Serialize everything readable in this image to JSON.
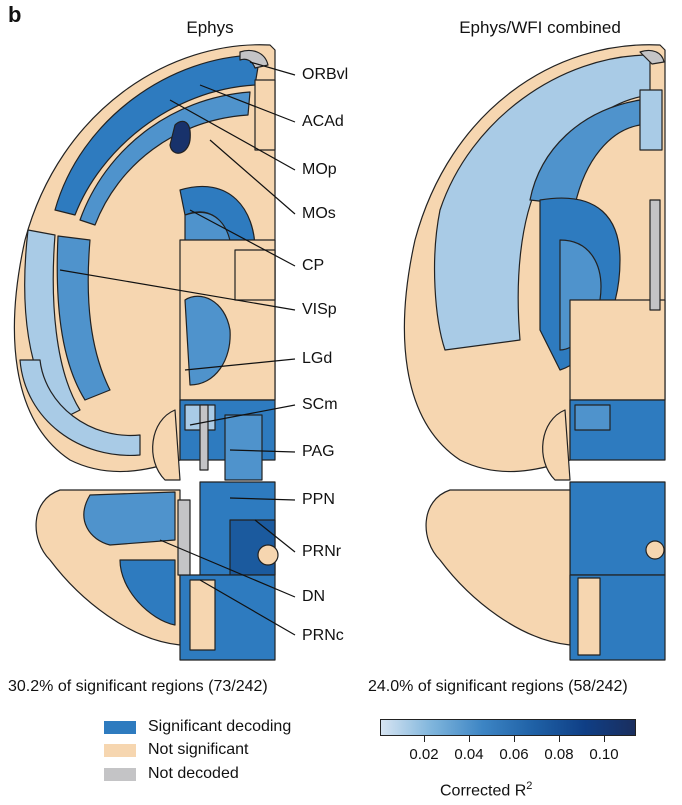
{
  "panel_label": "b",
  "panels": [
    {
      "title": "Ephys",
      "stat": "30.2% of significant regions (73/242)"
    },
    {
      "title": "Ephys/WFI combined",
      "stat": "24.0% of significant regions (58/242)"
    }
  ],
  "region_labels": [
    "ORBvl",
    "ACAd",
    "MOp",
    "MOs",
    "CP",
    "VISp",
    "LGd",
    "SCm",
    "PAG",
    "PPN",
    "PRNr",
    "DN",
    "PRNc"
  ],
  "legend": [
    {
      "label": "Significant decoding",
      "color": "#2e7bbf"
    },
    {
      "label": "Not significant",
      "color": "#f6d6b0"
    },
    {
      "label": "Not decoded",
      "color": "#c4c4c6"
    }
  ],
  "colorbar": {
    "ticks": [
      "0.02",
      "0.04",
      "0.06",
      "0.08",
      "0.10"
    ],
    "title": "Corrected R",
    "title_sup": "2"
  },
  "colors": {
    "not_significant": "#f6d6b0",
    "not_decoded": "#c4c4c6",
    "blue_light": "#a9cbe6",
    "blue_mid": "#4f93cc",
    "blue_strong": "#2e7bbf",
    "blue_dark": "#1b5a9e",
    "blue_darkest": "#18326b"
  }
}
